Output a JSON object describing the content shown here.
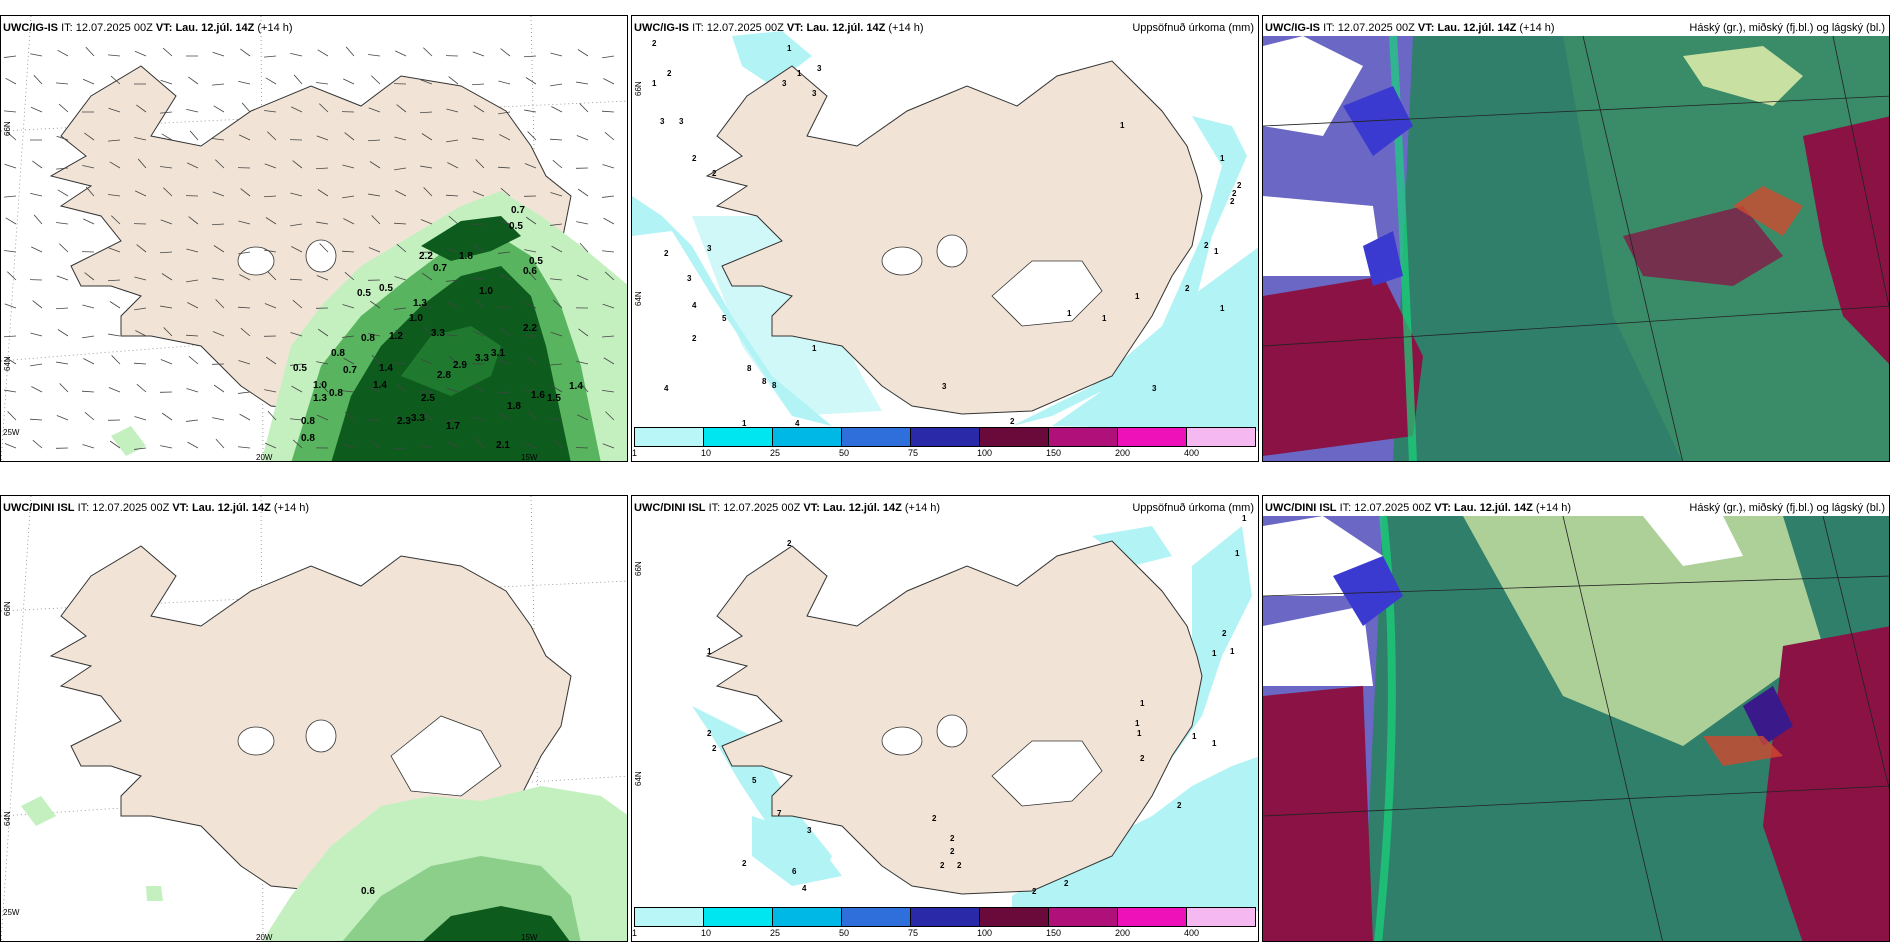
{
  "rows": [
    {
      "model": "UWC/IG-IS",
      "it_label": "IT:",
      "it_value": "12.07.2025 00Z",
      "vt_label": "VT:",
      "vt_value": "Lau. 12.júl. 14Z",
      "lead": "(+14 h)",
      "wind_numbers": [
        "0.7",
        "0.5",
        "2.2",
        "1.8",
        "0.5",
        "0.5",
        "0.7",
        "1.0",
        "0.5",
        "0.6",
        "1.3",
        "1.0",
        "3.3",
        "0.8",
        "1.2",
        "2.2",
        "0.5",
        "0.8",
        "0.7",
        "1.4",
        "2.9",
        "3.3",
        "3.1",
        "1.0",
        "1.3",
        "0.8",
        "1.4",
        "2.8",
        "2.5",
        "1.6",
        "1.5",
        "1.4",
        "0.8",
        "2.3",
        "3.3",
        "1.8",
        "1.7",
        "0.8",
        "2.1"
      ],
      "precip_numbers": [
        "2",
        "2",
        "1",
        "3",
        "3",
        "3",
        "1",
        "1",
        "3",
        "3",
        "2",
        "2",
        "3",
        "3",
        "4",
        "5",
        "2",
        "2",
        "1",
        "8",
        "8",
        "8",
        "4",
        "1",
        "3",
        "4",
        "1",
        "1",
        "2",
        "2",
        "2",
        "1",
        "2",
        "1",
        "2",
        "1",
        "1",
        "2",
        "1",
        "3"
      ]
    },
    {
      "model": "UWC/DINI ISL",
      "it_label": "IT:",
      "it_value": "12.07.2025 00Z",
      "vt_label": "VT:",
      "vt_value": "Lau. 12.júl. 14Z",
      "lead": "(+14 h)",
      "wind_numbers": [
        "0.6"
      ],
      "precip_numbers": [
        "2",
        "1",
        "2",
        "2",
        "5",
        "7",
        "3",
        "2",
        "6",
        "4",
        "2",
        "2",
        "2",
        "2",
        "2",
        "1",
        "1",
        "2",
        "1",
        "1",
        "1",
        "1",
        "1",
        "2",
        "1",
        "1",
        "2",
        "2",
        "2"
      ]
    }
  ],
  "precip_title": "Uppsöfnuð úrkoma (mm)",
  "cloud_title": "Háský (gr.), miðský (fj.bl.) og lágský (bl.)",
  "colorbar": {
    "colors": [
      "#b9f6f8",
      "#00e6f0",
      "#00b8e6",
      "#2f6fdc",
      "#2a2aa8",
      "#6a0a3a",
      "#b0107a",
      "#ee10b8",
      "#f5b8f0"
    ],
    "ticks": [
      "1",
      "10",
      "25",
      "50",
      "75",
      "100",
      "150",
      "200",
      "400"
    ]
  },
  "lat_labels": [
    "66N",
    "64N"
  ],
  "lon_labels": [
    "25W",
    "20W",
    "15W"
  ],
  "colors": {
    "land": "#f1e4d6",
    "green_light": "#c4f0c0",
    "green_mid": "#58b45e",
    "green_dark": "#0d5c1e",
    "precip": "#b2f3f5",
    "cloud_low": "#6a68c4",
    "cloud_mid": "#2f7f6a",
    "cloud_high": "#8a1244"
  }
}
